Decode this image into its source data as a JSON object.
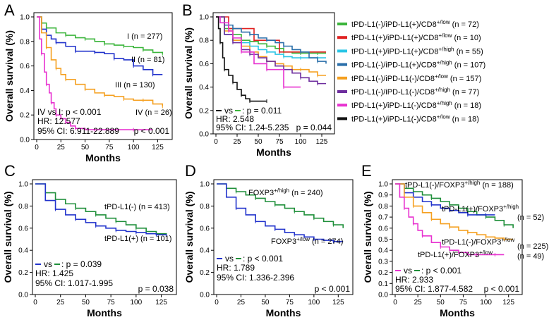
{
  "colors": {
    "green": "#3cb53c",
    "red": "#e02020",
    "cyan": "#29c5e6",
    "steel": "#2a6faa",
    "orange": "#f5a020",
    "purple": "#6e2e9e",
    "magenta": "#e832d0",
    "black": "#111111",
    "blue": "#2233cc",
    "forest": "#1f8f3a"
  },
  "chart_data": [
    {
      "panel": "A",
      "type": "line",
      "subtype": "kaplan-meier",
      "xlabel": "Months",
      "ylabel": "Overall survival (%)",
      "xlim": [
        0,
        140
      ],
      "ylim": [
        0,
        1.0
      ],
      "xticks": [
        "0",
        "25",
        "50",
        "75",
        "100",
        "125"
      ],
      "yticks": [
        "0.0",
        "0.2",
        "0.4",
        "0.6",
        "0.8",
        "1.0"
      ],
      "series": [
        {
          "name": "I (n = 277)",
          "color": "green",
          "x": [
            0,
            5,
            10,
            20,
            30,
            40,
            50,
            60,
            70,
            80,
            90,
            100,
            110,
            120,
            130
          ],
          "y": [
            1.0,
            0.95,
            0.91,
            0.87,
            0.85,
            0.83,
            0.82,
            0.8,
            0.78,
            0.77,
            0.76,
            0.75,
            0.73,
            0.71,
            0.7
          ]
        },
        {
          "name": "II (n = 81)",
          "color": "blue",
          "x": [
            0,
            5,
            10,
            15,
            20,
            30,
            40,
            50,
            60,
            70,
            80,
            90,
            100,
            110,
            120,
            130
          ],
          "y": [
            1.0,
            0.9,
            0.85,
            0.82,
            0.79,
            0.76,
            0.72,
            0.72,
            0.71,
            0.7,
            0.66,
            0.65,
            0.6,
            0.57,
            0.53,
            0.53
          ]
        },
        {
          "name": "III (n = 130)",
          "color": "orange",
          "x": [
            0,
            5,
            10,
            15,
            20,
            25,
            30,
            40,
            50,
            60,
            70,
            80,
            90,
            100,
            110,
            120,
            130
          ],
          "y": [
            1.0,
            0.87,
            0.75,
            0.65,
            0.58,
            0.53,
            0.49,
            0.45,
            0.41,
            0.38,
            0.36,
            0.35,
            0.33,
            0.32,
            0.32,
            0.29,
            0.27
          ]
        },
        {
          "name": "IV (n = 26)",
          "color": "magenta",
          "x": [
            0,
            3,
            5,
            8,
            10,
            13,
            15,
            18,
            20,
            25,
            30,
            35,
            40,
            50,
            60,
            75,
            100,
            120
          ],
          "y": [
            1.0,
            0.82,
            0.7,
            0.55,
            0.45,
            0.38,
            0.3,
            0.25,
            0.2,
            0.17,
            0.14,
            0.11,
            0.09,
            0.08,
            0.08,
            0.08,
            0.08,
            0.08
          ]
        }
      ],
      "labels": [
        "I (n = 277)",
        "II (n = 81)",
        "III (n = 130)",
        "IV (n = 26)"
      ],
      "stats": [
        "IV vs I: p < 0.001",
        "HR: 12.577",
        "95% CI: 6.911-22.889",
        "p < 0.001"
      ]
    },
    {
      "panel": "B",
      "type": "line",
      "subtype": "kaplan-meier",
      "xlabel": "Months",
      "ylabel": "Overall survival (%)",
      "xlim": [
        0,
        140
      ],
      "ylim": [
        0,
        1.0
      ],
      "xticks": [
        "0",
        "25",
        "50",
        "75",
        "100",
        "125"
      ],
      "yticks": [
        "0.0",
        "0.2",
        "0.4",
        "0.6",
        "0.8",
        "1.0"
      ],
      "series": [
        {
          "name": "tPD-L1(-)/iPD-L1(+)/CD8+/low (n = 72)",
          "color": "green",
          "x": [
            0,
            10,
            20,
            30,
            40,
            50,
            60,
            70,
            80,
            90,
            100,
            110,
            120,
            130
          ],
          "y": [
            1.0,
            0.9,
            0.85,
            0.8,
            0.79,
            0.77,
            0.75,
            0.73,
            0.7,
            0.69,
            0.69,
            0.69,
            0.69,
            0.69
          ]
        },
        {
          "name": "tPD-L1(+)/iPD-L1(+)/CD8+/low (n = 10)",
          "color": "red",
          "x": [
            0,
            5,
            15,
            30,
            45,
            60,
            75,
            90,
            100,
            130
          ],
          "y": [
            1.0,
            1.0,
            0.9,
            0.9,
            0.8,
            0.8,
            0.7,
            0.7,
            0.7,
            0.7
          ]
        },
        {
          "name": "tPD-L1(+)/iPD-L1(+)/CD8+/high (n = 55)",
          "color": "cyan",
          "x": [
            0,
            10,
            20,
            30,
            40,
            50,
            60,
            70,
            80,
            90,
            100,
            110,
            120,
            130
          ],
          "y": [
            1.0,
            0.85,
            0.8,
            0.78,
            0.75,
            0.72,
            0.7,
            0.68,
            0.66,
            0.65,
            0.65,
            0.65,
            0.65,
            0.65
          ]
        },
        {
          "name": "tPD-L1(-)/iPD-L1(+)/CD8+/high (n = 107)",
          "color": "steel",
          "x": [
            0,
            10,
            20,
            30,
            40,
            50,
            60,
            70,
            80,
            90,
            100,
            110,
            120,
            130
          ],
          "y": [
            1.0,
            0.93,
            0.9,
            0.87,
            0.85,
            0.82,
            0.8,
            0.78,
            0.75,
            0.72,
            0.7,
            0.65,
            0.62,
            0.6
          ]
        },
        {
          "name": "tPD-L1(-)/iPD-L1(-)/CD8+/low (n = 157)",
          "color": "orange",
          "x": [
            0,
            10,
            20,
            30,
            40,
            50,
            60,
            70,
            80,
            90,
            100,
            110,
            120,
            130
          ],
          "y": [
            1.0,
            0.88,
            0.8,
            0.75,
            0.7,
            0.66,
            0.62,
            0.6,
            0.58,
            0.55,
            0.55,
            0.53,
            0.5,
            0.5
          ]
        },
        {
          "name": "tPD-L1(-)/iPD-L1(-)/CD8+/high (n = 77)",
          "color": "purple",
          "x": [
            0,
            10,
            20,
            30,
            40,
            50,
            60,
            70,
            80,
            90,
            100,
            110,
            120,
            130
          ],
          "y": [
            1.0,
            0.85,
            0.78,
            0.72,
            0.68,
            0.65,
            0.62,
            0.58,
            0.55,
            0.52,
            0.48,
            0.45,
            0.43,
            0.43
          ]
        },
        {
          "name": "tPD-L1(+)/iPD-L1(-)/CD8+/high (n = 18)",
          "color": "magenta",
          "x": [
            0,
            5,
            15,
            20,
            30,
            45,
            60,
            75,
            80,
            100
          ],
          "y": [
            1.0,
            0.95,
            0.88,
            0.82,
            0.7,
            0.6,
            0.55,
            0.55,
            0.4,
            0.4
          ]
        },
        {
          "name": "tPD-L1(+)/iPD-L1(-)/CD8+/low (n = 18)",
          "color": "black",
          "x": [
            0,
            3,
            5,
            8,
            10,
            15,
            20,
            25,
            30,
            35,
            40,
            50,
            60
          ],
          "y": [
            1.0,
            0.9,
            0.78,
            0.65,
            0.55,
            0.5,
            0.44,
            0.38,
            0.33,
            0.3,
            0.28,
            0.28,
            0.28
          ]
        }
      ],
      "legend": [
        {
          "prefix": "tPD-L1(-)/iPD-L1(+)/CD8",
          "sup": "+/low",
          "n": " (n = 72)",
          "color": "green"
        },
        {
          "prefix": "tPD-L1(+)/iPD-L1(+)/CD8",
          "sup": "+/low",
          "n": " (n = 10)",
          "color": "red"
        },
        {
          "prefix": "tPD-L1(+)/iPD-L1(+)/CD8",
          "sup": "+/high",
          "n": " (n = 55)",
          "color": "cyan"
        },
        {
          "prefix": "tPD-L1(-)/iPD-L1(+)/CD8",
          "sup": "+/high",
          "n": " (n = 107)",
          "color": "steel"
        },
        {
          "prefix": "tPD-L1(-)/iPD-L1(-)/CD8",
          "sup": "+/low",
          "n": " (n = 157)",
          "color": "orange"
        },
        {
          "prefix": "tPD-L1(-)/iPD-L1(-)/CD8",
          "sup": "+/high",
          "n": " (n = 77)",
          "color": "purple"
        },
        {
          "prefix": "tPD-L1(+)/iPD-L1(-)/CD8",
          "sup": "+/high",
          "n": " (n = 18)",
          "color": "magenta"
        },
        {
          "prefix": "tPD-L1(+)/iPD-L1(-)/CD8",
          "sup": "+/low",
          "n": " (n = 18)",
          "color": "black"
        }
      ],
      "stats": [
        "vs",
        ": p = 0.011",
        "HR: 2.548",
        "95% CI: 1.24-5.235",
        "p = 0.044"
      ]
    },
    {
      "panel": "C",
      "type": "line",
      "subtype": "kaplan-meier",
      "xlabel": "Months",
      "ylabel": "Overall survival (%)",
      "xlim": [
        0,
        140
      ],
      "ylim": [
        0,
        1.0
      ],
      "xticks": [
        "0",
        "25",
        "50",
        "75",
        "100",
        "125"
      ],
      "yticks": [
        "0.0",
        "0.2",
        "0.4",
        "0.6",
        "0.8",
        "1.0"
      ],
      "series": [
        {
          "name": "tPD-L1(-) (n = 413)",
          "color": "forest",
          "x": [
            0,
            10,
            20,
            30,
            40,
            50,
            60,
            70,
            80,
            90,
            100,
            110,
            120,
            130
          ],
          "y": [
            1.0,
            0.92,
            0.86,
            0.82,
            0.78,
            0.75,
            0.72,
            0.69,
            0.66,
            0.63,
            0.6,
            0.57,
            0.55,
            0.54
          ]
        },
        {
          "name": "tPD-L1(+) (n = 101)",
          "color": "blue",
          "x": [
            0,
            10,
            20,
            30,
            40,
            50,
            60,
            70,
            80,
            90,
            100,
            110,
            120,
            130
          ],
          "y": [
            1.0,
            0.85,
            0.77,
            0.72,
            0.68,
            0.65,
            0.62,
            0.6,
            0.58,
            0.57,
            0.56,
            0.55,
            0.54,
            0.53
          ]
        }
      ],
      "labels": [
        "tPD-L1(-) (n = 413)",
        "tPD-L1(+) (n = 101)"
      ],
      "stats": [
        "vs",
        ": p = 0.039",
        "HR: 1.425",
        "95% CI: 1.017-1.995",
        "p = 0.038"
      ]
    },
    {
      "panel": "D",
      "type": "line",
      "subtype": "kaplan-meier",
      "xlabel": "Months",
      "ylabel": "Overall survival (%)",
      "xlim": [
        0,
        140
      ],
      "ylim": [
        0,
        1.0
      ],
      "xticks": [
        "0",
        "25",
        "50",
        "75",
        "100",
        "125"
      ],
      "yticks": [
        "0.0",
        "0.2",
        "0.4",
        "0.6",
        "0.8",
        "1.0"
      ],
      "series": [
        {
          "name": "FOXP3+/high (n = 240)",
          "color": "forest",
          "x": [
            0,
            10,
            20,
            30,
            40,
            50,
            60,
            70,
            80,
            90,
            100,
            110,
            120,
            130
          ],
          "y": [
            1.0,
            0.96,
            0.93,
            0.9,
            0.87,
            0.84,
            0.81,
            0.78,
            0.75,
            0.72,
            0.69,
            0.66,
            0.63,
            0.6
          ]
        },
        {
          "name": "FOXP3+/low (n = 274)",
          "color": "blue",
          "x": [
            0,
            10,
            20,
            30,
            40,
            50,
            60,
            70,
            80,
            90,
            100,
            110,
            120,
            130
          ],
          "y": [
            1.0,
            0.88,
            0.78,
            0.72,
            0.66,
            0.62,
            0.59,
            0.56,
            0.54,
            0.52,
            0.5,
            0.49,
            0.48,
            0.48
          ]
        }
      ],
      "labels": [
        "FOXP3+/high (n = 240)",
        "FOXP3+/low (n = 274)"
      ],
      "stats": [
        "vs",
        ": p < 0.001",
        "HR: 1.789",
        "95% CI: 1.336-2.396",
        "p < 0.001"
      ]
    },
    {
      "panel": "E",
      "type": "line",
      "subtype": "kaplan-meier",
      "xlabel": "Months",
      "ylabel": "Overall survival (%)",
      "xlim": [
        0,
        140
      ],
      "ylim": [
        0,
        1.0
      ],
      "xticks": [
        "0",
        "25",
        "50",
        "75",
        "100",
        "125"
      ],
      "yticks": [
        "0.0",
        "0.1",
        "0.2",
        "0.3",
        "0.4",
        "0.5",
        "0.6",
        "0.7",
        "0.8",
        "0.9",
        "1.0"
      ],
      "series": [
        {
          "name": "tPD-L1(-)/FOXP3+/high (n = 188)",
          "color": "forest",
          "x": [
            0,
            10,
            20,
            30,
            40,
            50,
            60,
            70,
            80,
            90,
            100,
            110,
            120,
            130
          ],
          "y": [
            1.0,
            0.96,
            0.93,
            0.9,
            0.87,
            0.84,
            0.81,
            0.78,
            0.75,
            0.72,
            0.7,
            0.67,
            0.63,
            0.6
          ]
        },
        {
          "name": "tPD-L1(+)/FOXP3+/high (n = 52)",
          "color": "blue",
          "x": [
            0,
            10,
            20,
            30,
            40,
            50,
            60,
            70,
            80,
            90,
            100,
            110
          ],
          "y": [
            1.0,
            0.92,
            0.88,
            0.84,
            0.81,
            0.78,
            0.76,
            0.74,
            0.72,
            0.72,
            0.72,
            0.72
          ]
        },
        {
          "name": "tPD-L1(-)/FOXP3+/low (n = 225)",
          "color": "orange",
          "x": [
            0,
            10,
            20,
            30,
            40,
            50,
            60,
            70,
            80,
            90,
            100,
            110,
            120,
            130
          ],
          "y": [
            1.0,
            0.88,
            0.8,
            0.74,
            0.68,
            0.64,
            0.61,
            0.58,
            0.56,
            0.54,
            0.52,
            0.51,
            0.5,
            0.5
          ]
        },
        {
          "name": "tPD-L1(+)/FOXP3+/low (n = 49)",
          "color": "magenta",
          "x": [
            0,
            5,
            10,
            15,
            20,
            25,
            30,
            40,
            50,
            60,
            70,
            80,
            90,
            100,
            110,
            120
          ],
          "y": [
            1.0,
            0.88,
            0.78,
            0.7,
            0.64,
            0.58,
            0.53,
            0.47,
            0.43,
            0.4,
            0.38,
            0.36,
            0.36,
            0.36,
            0.36,
            0.36
          ]
        }
      ],
      "labels": [
        {
          "prefix": "tPD-L1(-)/FOXP3",
          "sup": "+/high",
          "n": " (n = 188)"
        },
        {
          "prefix": "tPD-L1(+)/FOXP3",
          "sup": "+/high",
          "n": "(n = 52)"
        },
        {
          "prefix": "tPD-L1(-)/FOXP3",
          "sup": "+/low",
          "n": "(n = 225)"
        },
        {
          "prefix": "tPD-L1(+)/FOXP3",
          "sup": "+/low",
          "n": "(n = 49)"
        }
      ],
      "stats": [
        "vs",
        ": p < 0.001",
        "HR: 2.933",
        "95% CI: 1.877-4.582",
        "p < 0.001"
      ]
    }
  ],
  "texts": {
    "A_letter": "A",
    "B_letter": "B",
    "C_letter": "C",
    "D_letter": "D",
    "E_letter": "E",
    "D_high_prefix": "FOXP3",
    "D_high_sup": "+/high",
    "D_high_n": " (n = 240)",
    "D_low_prefix": "FOXP3",
    "D_low_sup": "+/low",
    "D_low_n": " (n = 274)"
  }
}
